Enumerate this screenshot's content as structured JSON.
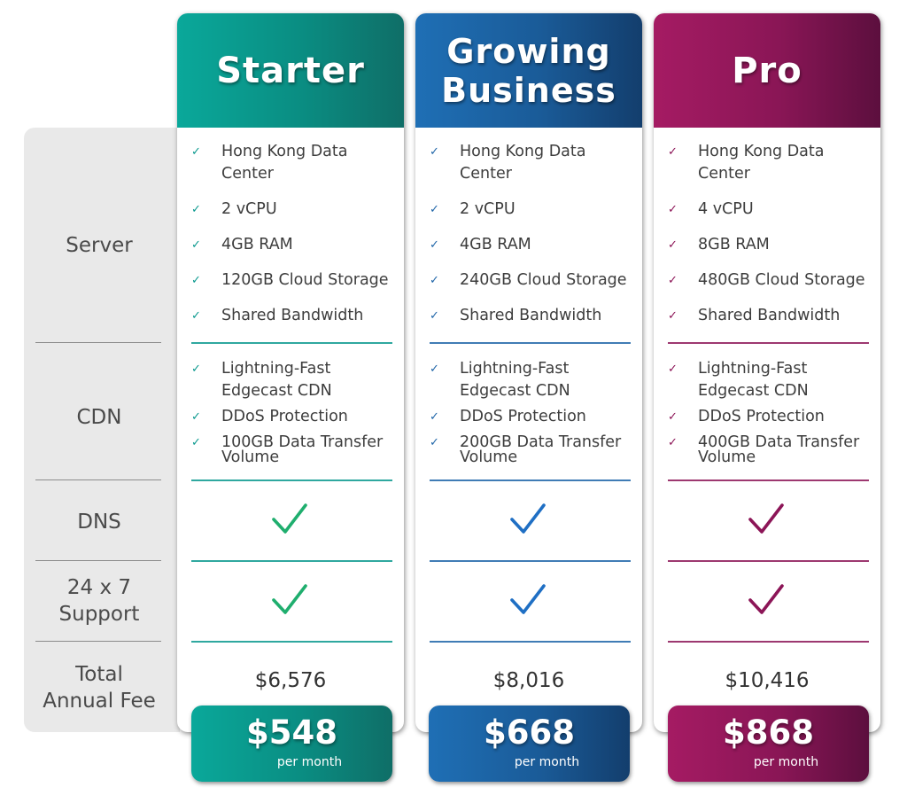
{
  "row_labels": {
    "server": "Server",
    "cdn": "CDN",
    "dns": "DNS",
    "support_1": "24 x 7",
    "support_2": "Support",
    "fee_1": "Total",
    "fee_2": "Annual Fee"
  },
  "check_mark": "✓",
  "colors": {
    "starter": "#0a998e",
    "growing": "#1f65a8",
    "pro": "#8c1557",
    "starter_check": "#1fae6e",
    "growing_check": "#1f6fc4",
    "pro_check": "#8c1557"
  },
  "plans": [
    {
      "title_1": "Starter",
      "title_2": "",
      "server": [
        [
          "Hong Kong Data",
          "Center"
        ],
        [
          "2 vCPU"
        ],
        [
          "4GB RAM"
        ],
        [
          "120GB Cloud Storage"
        ],
        [
          "Shared Bandwidth"
        ]
      ],
      "cdn": [
        [
          "Lightning-Fast",
          "Edgecast CDN"
        ],
        [
          "DDoS Protection"
        ],
        [
          "100GB Data Transfer",
          "Volume"
        ]
      ],
      "annual_fee": "$6,576",
      "price": "$548",
      "per_month": "per month"
    },
    {
      "title_1": "Growing",
      "title_2": "Business",
      "server": [
        [
          "Hong Kong Data",
          "Center"
        ],
        [
          "2 vCPU"
        ],
        [
          "4GB RAM"
        ],
        [
          "240GB Cloud Storage"
        ],
        [
          "Shared Bandwidth"
        ]
      ],
      "cdn": [
        [
          "Lightning-Fast",
          "Edgecast CDN"
        ],
        [
          "DDoS Protection"
        ],
        [
          "200GB Data Transfer",
          "Volume"
        ]
      ],
      "annual_fee": "$8,016",
      "price": "$668",
      "per_month": "per month"
    },
    {
      "title_1": "Pro",
      "title_2": "",
      "server": [
        [
          "Hong Kong Data",
          "Center"
        ],
        [
          "4 vCPU"
        ],
        [
          "8GB RAM"
        ],
        [
          "480GB Cloud Storage"
        ],
        [
          "Shared Bandwidth"
        ]
      ],
      "cdn": [
        [
          "Lightning-Fast",
          "Edgecast CDN"
        ],
        [
          "DDoS Protection"
        ],
        [
          "400GB Data Transfer",
          "Volume"
        ]
      ],
      "annual_fee": "$10,416",
      "price": "$868",
      "per_month": "per month"
    }
  ]
}
